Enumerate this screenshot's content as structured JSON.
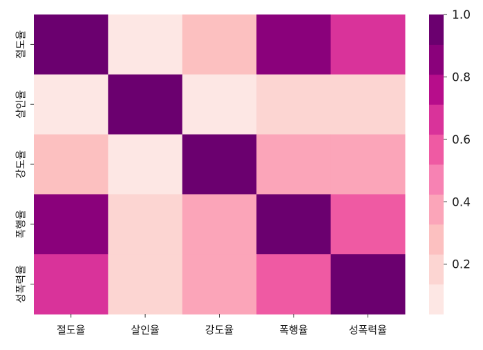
{
  "chart_data": {
    "type": "heatmap",
    "title": "",
    "xlabel": "",
    "ylabel": "",
    "x_categories": [
      "절도율",
      "살인율",
      "강도율",
      "폭행율",
      "성폭력율"
    ],
    "y_categories": [
      "절도율",
      "살인율",
      "강도율",
      "폭행율",
      "성폭력율"
    ],
    "values": [
      [
        1.0,
        0.1,
        0.27,
        0.85,
        0.63
      ],
      [
        0.1,
        1.0,
        0.1,
        0.17,
        0.17
      ],
      [
        0.27,
        0.1,
        1.0,
        0.37,
        0.37
      ],
      [
        0.85,
        0.17,
        0.37,
        1.0,
        0.55
      ],
      [
        0.63,
        0.17,
        0.37,
        0.55,
        1.0
      ]
    ],
    "colorbar": {
      "range": [
        0.04,
        1.0
      ],
      "ticks": [
        "0.2",
        "0.4",
        "0.6",
        "0.8",
        "1.0"
      ],
      "tick_values": [
        0.2,
        0.4,
        0.6,
        0.8,
        1.0
      ],
      "colors": [
        "#fde7e4",
        "#fcd5d2",
        "#fcc0c0",
        "#fba5b9",
        "#f782b3",
        "#ef5aa3",
        "#d9339a",
        "#b70d8b",
        "#8a017b",
        "#6b006f"
      ]
    },
    "grid": false,
    "legend": "colorbar-right"
  }
}
